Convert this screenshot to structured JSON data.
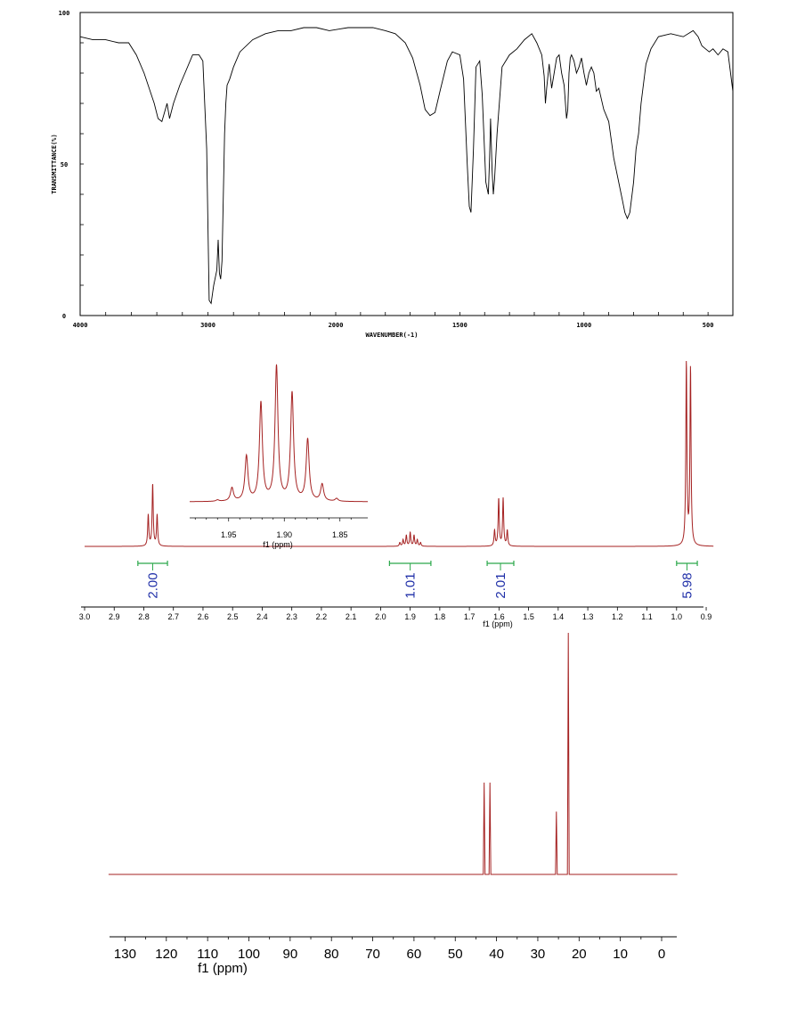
{
  "chart_data": [
    {
      "type": "line",
      "xlabel": "WAVENUMBER(-1)",
      "ylabel": "TRANSMITTANCE(%)",
      "xlim": [
        4000,
        400
      ],
      "ylim": [
        0,
        100
      ],
      "x_ticks": [
        "4000",
        "3000",
        "2000",
        "1500",
        "1000",
        "500"
      ],
      "y_ticks": [
        "0",
        "50",
        "100"
      ],
      "line_color": "#000000",
      "series": [
        {
          "x": [
            4000,
            3900,
            3800,
            3700,
            3620,
            3560,
            3500,
            3420,
            3390,
            3360,
            3340,
            3320,
            3300,
            3270,
            3220,
            3180,
            3120,
            3070,
            3040,
            3010,
            2990,
            2975,
            2962,
            2955,
            2945,
            2930,
            2920,
            2910,
            2900,
            2890,
            2870,
            2860,
            2850,
            2830,
            2800,
            2750,
            2650,
            2550,
            2450,
            2350,
            2250,
            2150,
            2050,
            1950,
            1850,
            1800,
            1760,
            1720,
            1690,
            1660,
            1640,
            1620,
            1600,
            1580,
            1550,
            1530,
            1500,
            1485,
            1470,
            1462,
            1455,
            1445,
            1435,
            1420,
            1410,
            1395,
            1385,
            1380,
            1376,
            1370,
            1365,
            1360,
            1350,
            1330,
            1300,
            1270,
            1240,
            1210,
            1190,
            1170,
            1160,
            1155,
            1150,
            1140,
            1130,
            1120,
            1110,
            1100,
            1090,
            1080,
            1070,
            1065,
            1060,
            1055,
            1050,
            1040,
            1030,
            1020,
            1010,
            1000,
            990,
            980,
            970,
            960,
            950,
            940,
            920,
            900,
            880,
            860,
            845,
            835,
            825,
            815,
            800,
            790,
            780,
            770,
            750,
            730,
            700,
            650,
            600,
            560,
            540,
            525,
            510,
            495,
            480,
            460,
            440,
            420,
            400
          ],
          "y": [
            92,
            91,
            91,
            90,
            90,
            86,
            80,
            70,
            65,
            64,
            67,
            70,
            65,
            70,
            76,
            80,
            86,
            86,
            84,
            55,
            5,
            4,
            8,
            10,
            12,
            15,
            25,
            14,
            12,
            18,
            60,
            70,
            76,
            78,
            82,
            87,
            91,
            93,
            94,
            94,
            95,
            95,
            94,
            95,
            95,
            94,
            93,
            90,
            85,
            76,
            68,
            66,
            67,
            74,
            84,
            87,
            86,
            78,
            50,
            36,
            34,
            55,
            82,
            84,
            73,
            44,
            40,
            52,
            65,
            48,
            40,
            45,
            60,
            82,
            86,
            88,
            91,
            93,
            90,
            86,
            79,
            70,
            75,
            83,
            75,
            80,
            85,
            86,
            80,
            76,
            65,
            68,
            80,
            85,
            86,
            84,
            80,
            82,
            85,
            80,
            76,
            80,
            82,
            80,
            74,
            75,
            68,
            64,
            52,
            44,
            38,
            34,
            32,
            34,
            44,
            55,
            60,
            70,
            83,
            88,
            92,
            93,
            92,
            94,
            92,
            89,
            88,
            87,
            88,
            86,
            88,
            87,
            74
          ]
        }
      ]
    },
    {
      "type": "line",
      "xlabel": "f1 (ppm)",
      "xlim": [
        3.0,
        0.87
      ],
      "x_ticks": [
        "3.0",
        "2.9",
        "2.8",
        "2.7",
        "2.6",
        "2.5",
        "2.4",
        "2.3",
        "2.2",
        "2.1",
        "2.0",
        "1.9",
        "1.8",
        "1.7",
        "1.6",
        "1.5",
        "1.4",
        "1.3",
        "1.2",
        "1.1",
        "1.0",
        "0.9"
      ],
      "line_color": "#a52222",
      "peaks": [
        {
          "ppm": 2.785,
          "height": 0.17
        },
        {
          "ppm": 2.77,
          "height": 0.34
        },
        {
          "ppm": 2.755,
          "height": 0.17
        },
        {
          "ppm": 1.935,
          "height": 0.02
        },
        {
          "ppm": 1.924,
          "height": 0.035
        },
        {
          "ppm": 1.913,
          "height": 0.06
        },
        {
          "ppm": 1.9,
          "height": 0.075
        },
        {
          "ppm": 1.887,
          "height": 0.06
        },
        {
          "ppm": 1.876,
          "height": 0.035
        },
        {
          "ppm": 1.865,
          "height": 0.02
        },
        {
          "ppm": 1.615,
          "height": 0.085
        },
        {
          "ppm": 1.601,
          "height": 0.26
        },
        {
          "ppm": 1.586,
          "height": 0.26
        },
        {
          "ppm": 1.572,
          "height": 0.085
        },
        {
          "ppm": 0.967,
          "height": 1.0
        },
        {
          "ppm": 0.953,
          "height": 0.97
        }
      ],
      "integrals": [
        {
          "from": 2.82,
          "to": 2.72,
          "label": "2.00"
        },
        {
          "from": 1.97,
          "to": 1.83,
          "label": "1.01"
        },
        {
          "from": 1.64,
          "to": 1.55,
          "label": "2.01"
        },
        {
          "from": 1.0,
          "to": 0.93,
          "label": "5.98"
        }
      ],
      "integral_color": "#2aa84a",
      "inset": {
        "xlabel": "f1 (ppm)",
        "xlim": [
          1.985,
          1.825
        ],
        "x_ticks": [
          "1.95",
          "1.90",
          "1.85"
        ],
        "peaks": [
          {
            "ppm": 1.96,
            "height": 0.01
          },
          {
            "ppm": 1.947,
            "height": 0.095
          },
          {
            "ppm": 1.934,
            "height": 0.32
          },
          {
            "ppm": 1.921,
            "height": 0.7
          },
          {
            "ppm": 1.907,
            "height": 0.96
          },
          {
            "ppm": 1.893,
            "height": 0.77
          },
          {
            "ppm": 1.879,
            "height": 0.44
          },
          {
            "ppm": 1.866,
            "height": 0.12
          },
          {
            "ppm": 1.853,
            "height": 0.02
          }
        ]
      }
    },
    {
      "type": "line",
      "xlabel": "f1 (ppm)",
      "xlim": [
        134,
        -3
      ],
      "x_ticks": [
        "130",
        "120",
        "110",
        "100",
        "90",
        "80",
        "70",
        "60",
        "50",
        "40",
        "30",
        "20",
        "10",
        "0"
      ],
      "line_color": "#a52222",
      "peaks": [
        {
          "ppm": 43.0,
          "height": 0.38
        },
        {
          "ppm": 41.6,
          "height": 0.38
        },
        {
          "ppm": 25.5,
          "height": 0.26
        },
        {
          "ppm": 22.6,
          "height": 1.0
        }
      ]
    }
  ]
}
